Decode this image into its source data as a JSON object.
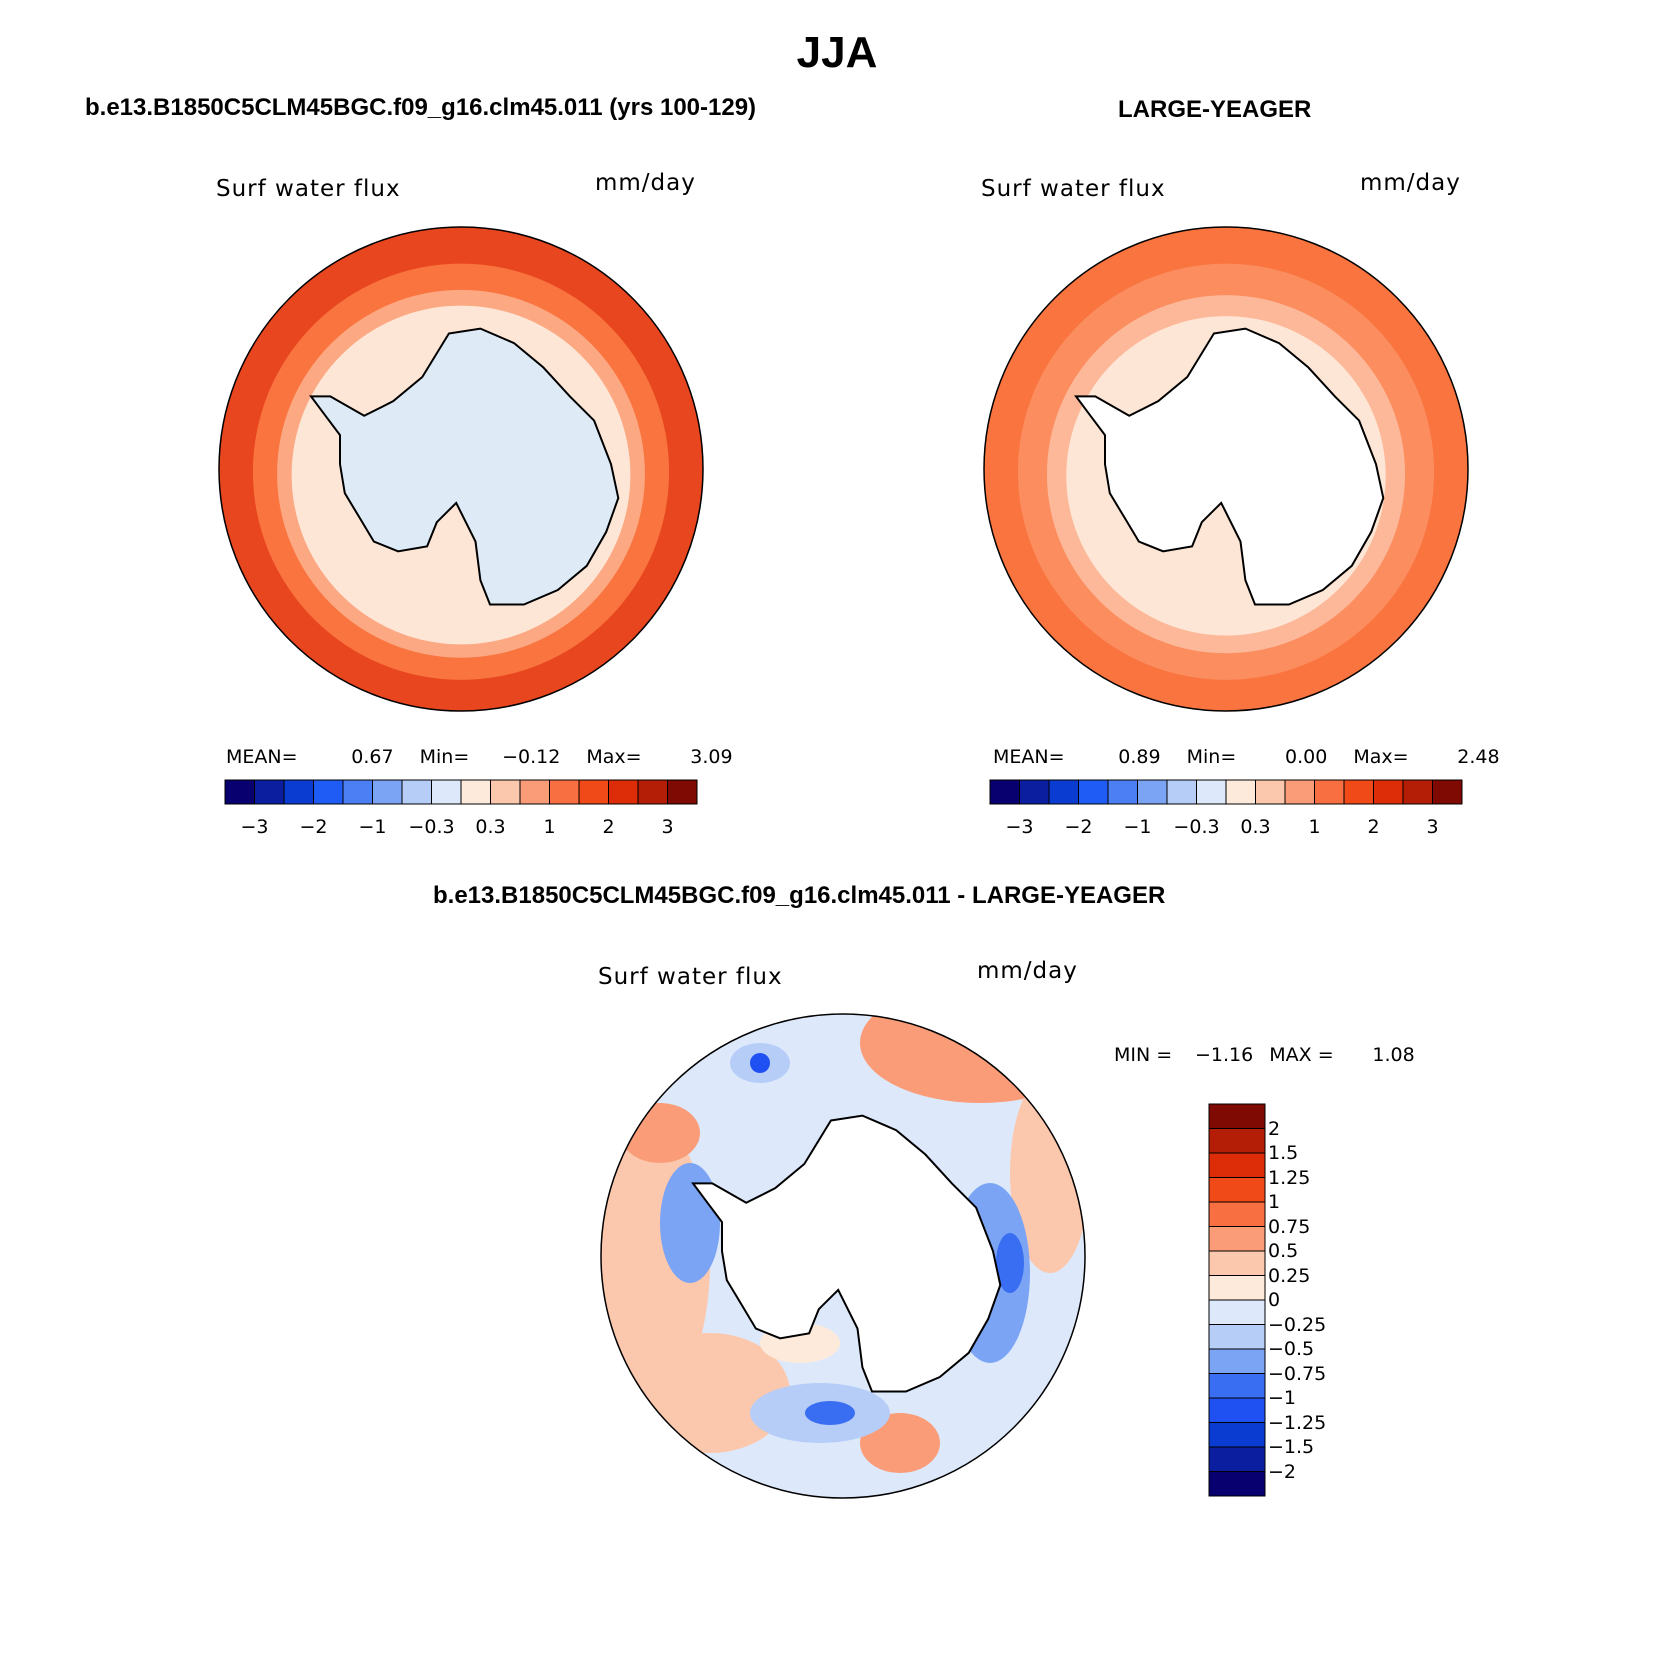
{
  "title": "JJA",
  "panels": [
    {
      "id": "case",
      "case_title": "b.e13.B1850C5CLM45BGC.f09_g16.clm45.011 (yrs 100-129)",
      "variable": "Surf water flux",
      "units": "mm/day",
      "stats": {
        "mean_label": "MEAN=",
        "mean": "0.67",
        "min_label": "Min=",
        "min": "−0.12",
        "max_label": "Max=",
        "max": "3.09"
      },
      "land_color": "#deebf7",
      "bands": [
        {
          "r": 1.0,
          "color": "#e8461e"
        },
        {
          "r": 0.86,
          "color": "#f9743e"
        },
        {
          "r": 0.76,
          "color": "#fca883"
        },
        {
          "r": 0.7,
          "color": "#fee6d6"
        }
      ]
    },
    {
      "id": "obs",
      "case_title": "LARGE-YEAGER",
      "variable": "Surf water flux",
      "units": "mm/day",
      "stats": {
        "mean_label": "MEAN=",
        "mean": "0.89",
        "min_label": "Min=",
        "min": "0.00",
        "max_label": "Max=",
        "max": "2.48"
      },
      "land_color": "#ffffff",
      "bands": [
        {
          "r": 1.0,
          "color": "#f9743e"
        },
        {
          "r": 0.86,
          "color": "#fb8d5e"
        },
        {
          "r": 0.74,
          "color": "#fcb898"
        },
        {
          "r": 0.66,
          "color": "#fee6d6"
        }
      ]
    }
  ],
  "color_scale": {
    "colors": [
      "#08006e",
      "#0b1ea0",
      "#0a3cd2",
      "#1f5cf6",
      "#4d7ff4",
      "#7ca4f4",
      "#b6cdf8",
      "#dde9fb",
      "#feeada",
      "#fcc8ad",
      "#fa9c78",
      "#f87041",
      "#f04a18",
      "#dc2d08",
      "#b41e06",
      "#7e0a03"
    ],
    "ticks": [
      {
        "label": "−3",
        "pos": 1
      },
      {
        "label": "−2",
        "pos": 3
      },
      {
        "label": "−1",
        "pos": 5
      },
      {
        "label": "−0.3",
        "pos": 7
      },
      {
        "label": "0.3",
        "pos": 9
      },
      {
        "label": "1",
        "pos": 11
      },
      {
        "label": "2",
        "pos": 13
      },
      {
        "label": "3",
        "pos": 15
      }
    ]
  },
  "difference": {
    "case_title": "b.e13.B1850C5CLM45BGC.f09_g16.clm45.011 - LARGE-YEAGER",
    "variable": "Surf water flux",
    "units": "mm/day",
    "stats": {
      "min_label": "MIN =",
      "min": "−1.16",
      "max_label": "MAX =",
      "max": "1.08"
    },
    "colors": [
      "#08006e",
      "#0b1ea0",
      "#0a3cd2",
      "#1f50f2",
      "#3a6ef2",
      "#7ca4f4",
      "#b6cdf8",
      "#dde9fb",
      "#feeada",
      "#fcc8ad",
      "#fa9c78",
      "#f87041",
      "#f04a18",
      "#dc2d08",
      "#b41e06",
      "#7e0a03"
    ],
    "labels": [
      "2",
      "1.5",
      "1.25",
      "1",
      "0.75",
      "0.5",
      "0.25",
      "0",
      "−0.25",
      "−0.5",
      "−0.75",
      "−1",
      "−1.25",
      "−1.5",
      "−2"
    ]
  }
}
